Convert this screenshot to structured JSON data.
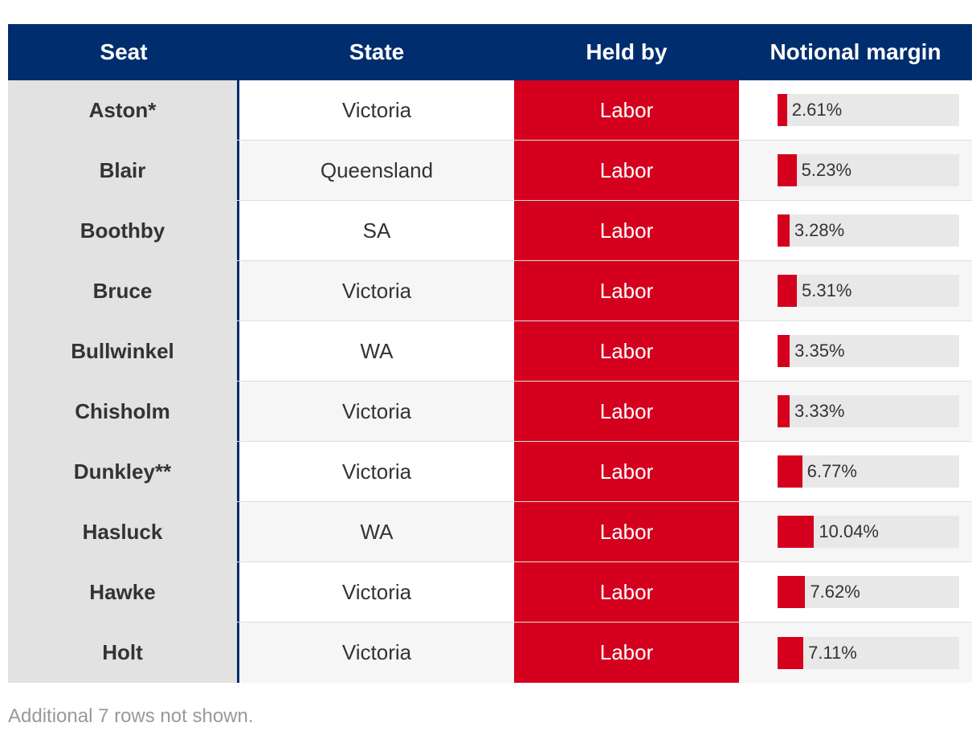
{
  "columns": {
    "seat": "Seat",
    "state": "State",
    "held_by": "Held by",
    "margin": "Notional margin"
  },
  "colors": {
    "header_bg": "#002d6e",
    "held_bg": "#d4001e",
    "bar_fill": "#d4001e",
    "bar_track": "#e8e8e8",
    "seat_bg": "#e2e2e2"
  },
  "chart_data": {
    "type": "table",
    "bar_max": 50,
    "rows": [
      {
        "seat": "Aston*",
        "state": "Victoria",
        "held_by": "Labor",
        "margin": 2.61,
        "margin_label": "2.61%"
      },
      {
        "seat": "Blair",
        "state": "Queensland",
        "held_by": "Labor",
        "margin": 5.23,
        "margin_label": "5.23%"
      },
      {
        "seat": "Boothby",
        "state": "SA",
        "held_by": "Labor",
        "margin": 3.28,
        "margin_label": "3.28%"
      },
      {
        "seat": "Bruce",
        "state": "Victoria",
        "held_by": "Labor",
        "margin": 5.31,
        "margin_label": "5.31%"
      },
      {
        "seat": "Bullwinkel",
        "state": "WA",
        "held_by": "Labor",
        "margin": 3.35,
        "margin_label": "3.35%"
      },
      {
        "seat": "Chisholm",
        "state": "Victoria",
        "held_by": "Labor",
        "margin": 3.33,
        "margin_label": "3.33%"
      },
      {
        "seat": "Dunkley**",
        "state": "Victoria",
        "held_by": "Labor",
        "margin": 6.77,
        "margin_label": "6.77%"
      },
      {
        "seat": "Hasluck",
        "state": "WA",
        "held_by": "Labor",
        "margin": 10.04,
        "margin_label": "10.04%"
      },
      {
        "seat": "Hawke",
        "state": "Victoria",
        "held_by": "Labor",
        "margin": 7.62,
        "margin_label": "7.62%"
      },
      {
        "seat": "Holt",
        "state": "Victoria",
        "held_by": "Labor",
        "margin": 7.11,
        "margin_label": "7.11%"
      }
    ]
  },
  "footnote": "Additional 7 rows not shown."
}
